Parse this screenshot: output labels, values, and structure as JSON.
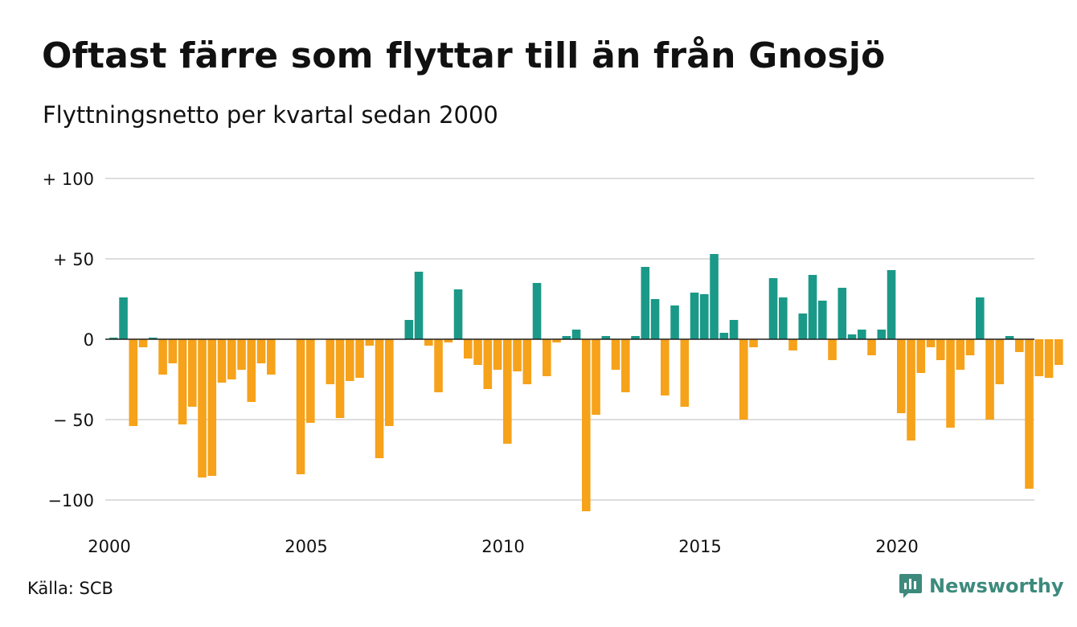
{
  "header": {
    "title": "Oftast färre som flyttar till än från Gnosjö",
    "subtitle": "Flyttningsnetto per kvartal sedan 2000"
  },
  "footer": {
    "source": "Källa: SCB",
    "brand": "Newsworthy"
  },
  "colors": {
    "positive": "#1b9988",
    "negative": "#f6a21a",
    "gridline": "#dddddd",
    "zeroline": "#222222",
    "brand": "#3d8a7d"
  },
  "chart_data": {
    "type": "bar",
    "title": "Oftast färre som flyttar till än från Gnosjö",
    "subtitle": "Flyttningsnetto per kvartal sedan 2000",
    "xlabel": "",
    "ylabel": "",
    "x_start": "2000-Q1",
    "x_tick_labels": [
      "2000",
      "2005",
      "2010",
      "2015",
      "2020"
    ],
    "y_tick_values": [
      100,
      50,
      0,
      -50,
      -100
    ],
    "y_tick_labels": [
      "+ 100",
      "+  50",
      "0",
      "− 50",
      "−100"
    ],
    "ylim": [
      -115,
      100
    ],
    "grid": true,
    "legend": "none",
    "values": [
      1,
      26,
      -54,
      -5,
      1,
      -22,
      -15,
      -53,
      -42,
      -86,
      -85,
      -27,
      -25,
      -19,
      -39,
      -15,
      -22,
      0,
      0,
      -84,
      -52,
      0,
      -28,
      -49,
      -26,
      -24,
      -4,
      -74,
      -54,
      0,
      12,
      42,
      -4,
      -33,
      -2,
      31,
      -12,
      -16,
      -31,
      -19,
      -65,
      -20,
      -28,
      35,
      -23,
      -2,
      2,
      6,
      -107,
      -47,
      2,
      -19,
      -33,
      2,
      45,
      25,
      -35,
      21,
      -42,
      29,
      28,
      53,
      4,
      12,
      -50,
      -5,
      0,
      38,
      26,
      -7,
      16,
      40,
      24,
      -13,
      32,
      3,
      6,
      -10,
      6,
      43,
      -46,
      -63,
      -21,
      -5,
      -13,
      -55,
      -19,
      -10,
      26,
      -50,
      -28,
      2,
      -8,
      -93,
      -23,
      -24,
      -16
    ]
  }
}
